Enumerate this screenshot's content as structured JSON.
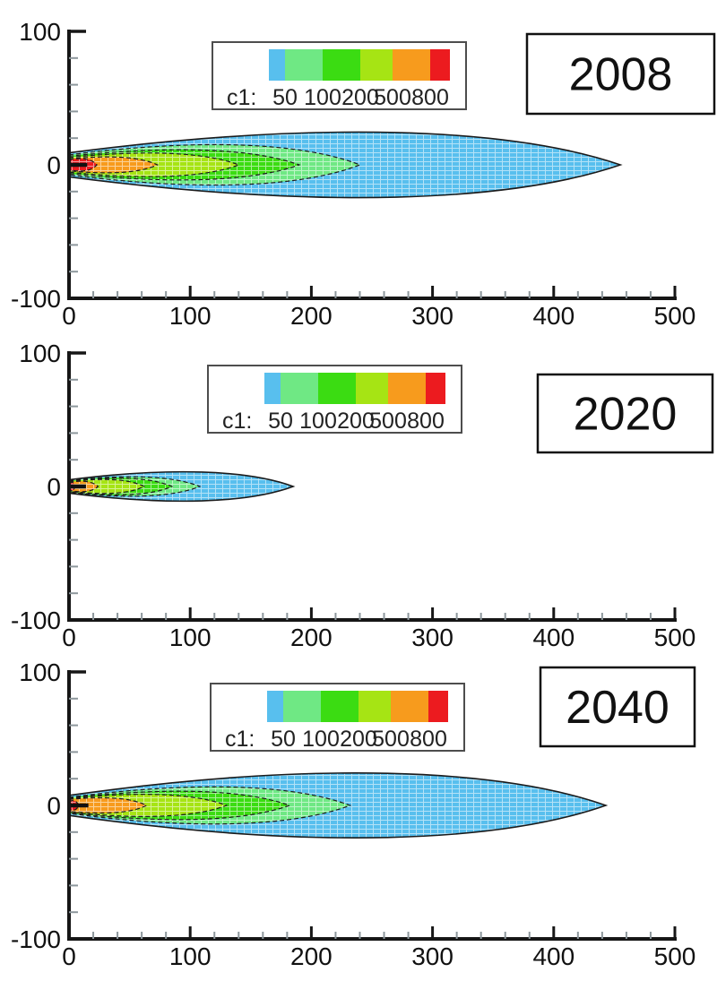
{
  "figure": {
    "background": "#ffffff",
    "axis_color": "#161616",
    "minor_tick_color": "#8d979c",
    "text_color": "#111111",
    "mesh_line_color": "#ffffff"
  },
  "legend": {
    "title": "c1:",
    "tick_labels": [
      "50",
      "100",
      "200",
      "500",
      "800"
    ],
    "swatch_colors": [
      "#58BFEE",
      "#6FE884",
      "#3BDC12",
      "#A6E414",
      "#F79B1D",
      "#EC1B1F"
    ],
    "swatch_widths": [
      18,
      42,
      42,
      36,
      42,
      22
    ]
  },
  "axes": {
    "x_range": [
      0,
      500
    ],
    "y_range": [
      -100,
      100
    ],
    "x_tick_labels": [
      "0",
      "100",
      "200",
      "300",
      "400",
      "500"
    ],
    "x_major_ticks": [
      0,
      100,
      200,
      300,
      400,
      500
    ],
    "x_minor_step": 20,
    "y_tick_labels": [
      "100",
      "0",
      "-100"
    ],
    "y_major_ticks": [
      100,
      0,
      -100
    ],
    "y_minor_step": 20
  },
  "chart_data": [
    {
      "type": "contour-plume",
      "year": "2008",
      "variable": "c1",
      "level_boundaries": [
        50,
        100,
        200,
        500,
        800
      ],
      "x_range": [
        0,
        500
      ],
      "y_range": [
        -100,
        100
      ],
      "contours": [
        {
          "name": "band-below-50",
          "color": "#58BFEE",
          "x_end": 455,
          "half_h_start": 9.0,
          "half_h_max": 25.0
        },
        {
          "name": "band-50-100",
          "color": "#6FE884",
          "x_end": 240,
          "half_h_start": 7.5,
          "half_h_max": 15.0
        },
        {
          "name": "band-100-200",
          "color": "#3BDC12",
          "x_end": 190,
          "half_h_start": 6.5,
          "half_h_max": 11.0
        },
        {
          "name": "band-200-500",
          "color": "#A6E414",
          "x_end": 140,
          "half_h_start": 5.5,
          "half_h_max": 8.5
        },
        {
          "name": "band-500-800",
          "color": "#F79B1D",
          "x_end": 73,
          "half_h_start": 4.5,
          "half_h_max": 5.5
        },
        {
          "name": "band-above-800",
          "color": "#EC1B1F",
          "x_end": 23,
          "half_h_start": 3.8,
          "half_h_max": 4.2
        }
      ],
      "centerline_x_end": 15
    },
    {
      "type": "contour-plume",
      "year": "2020",
      "variable": "c1",
      "level_boundaries": [
        50,
        100,
        200,
        500,
        800
      ],
      "x_range": [
        0,
        500
      ],
      "y_range": [
        -100,
        100
      ],
      "contours": [
        {
          "name": "band-below-50",
          "color": "#58BFEE",
          "x_end": 185,
          "half_h_start": 5.0,
          "half_h_max": 11.0
        },
        {
          "name": "band-50-100",
          "color": "#6FE884",
          "x_end": 108,
          "half_h_start": 4.5,
          "half_h_max": 7.0
        },
        {
          "name": "band-100-200",
          "color": "#3BDC12",
          "x_end": 85,
          "half_h_start": 4.0,
          "half_h_max": 6.0
        },
        {
          "name": "band-200-500",
          "color": "#A6E414",
          "x_end": 62,
          "half_h_start": 3.5,
          "half_h_max": 5.0
        },
        {
          "name": "band-500-800",
          "color": "#F79B1D",
          "x_end": 24,
          "half_h_start": 3.0,
          "half_h_max": 3.6
        },
        {
          "name": "band-above-800",
          "color": "#EC1B1F",
          "x_end": 5,
          "half_h_start": 2.6,
          "half_h_max": 2.8
        }
      ],
      "centerline_x_end": 14
    },
    {
      "type": "contour-plume",
      "year": "2040",
      "variable": "c1",
      "level_boundaries": [
        50,
        100,
        200,
        500,
        800
      ],
      "x_range": [
        0,
        500
      ],
      "y_range": [
        -100,
        100
      ],
      "contours": [
        {
          "name": "band-below-50",
          "color": "#58BFEE",
          "x_end": 443,
          "half_h_start": 7.5,
          "half_h_max": 25.0
        },
        {
          "name": "band-50-100",
          "color": "#6FE884",
          "x_end": 232,
          "half_h_start": 6.0,
          "half_h_max": 14.0
        },
        {
          "name": "band-100-200",
          "color": "#3BDC12",
          "x_end": 182,
          "half_h_start": 5.5,
          "half_h_max": 10.5
        },
        {
          "name": "band-200-500",
          "color": "#A6E414",
          "x_end": 130,
          "half_h_start": 5.0,
          "half_h_max": 8.0
        },
        {
          "name": "band-500-800",
          "color": "#F79B1D",
          "x_end": 64,
          "half_h_start": 4.5,
          "half_h_max": 5.2
        },
        {
          "name": "band-above-800",
          "color": "#EC1B1F",
          "x_end": 8,
          "half_h_start": 3.0,
          "half_h_max": 3.2
        }
      ],
      "centerline_x_end": 16
    }
  ]
}
